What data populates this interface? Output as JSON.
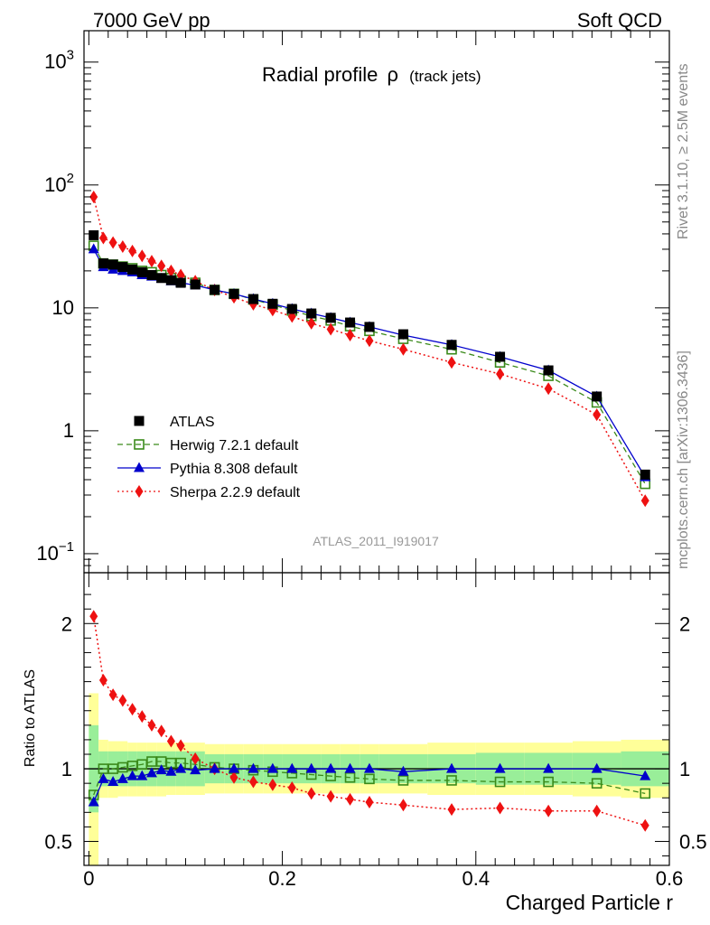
{
  "header": {
    "left": "7000 GeV pp",
    "right": "Soft QCD"
  },
  "side": {
    "top": "Rivet 3.1.10, ≥ 2.5M events",
    "bottom": "mcplots.cern.ch [arXiv:1306.3436]"
  },
  "watermark": "ATLAS_2011_I919017",
  "colors": {
    "atlas": "#000000",
    "herwig": "#3a8a1a",
    "pythia": "#0000cc",
    "sherpa": "#ee1111",
    "band_inner": "#99ee99",
    "band_outer": "#ffff99"
  },
  "chart_data": [
    {
      "type": "line",
      "panel": "main",
      "title": "Radial profile",
      "title_symbol": "ρ",
      "title_suffix": "(track jets)",
      "ylabel": "",
      "yscale": "log",
      "ylim": [
        0.07,
        1800
      ],
      "xlim": [
        -0.005,
        0.6
      ],
      "y_ticks": [
        {
          "value": 0.1,
          "base": "10",
          "exp": "−1"
        },
        {
          "value": 1,
          "base": "1",
          "exp": ""
        },
        {
          "value": 10,
          "base": "10",
          "exp": ""
        },
        {
          "value": 100,
          "base": "10",
          "exp": "2"
        },
        {
          "value": 1000,
          "base": "10",
          "exp": "3"
        }
      ],
      "legend_position": "bottom-left",
      "x": [
        0.005,
        0.015,
        0.025,
        0.035,
        0.045,
        0.055,
        0.065,
        0.075,
        0.085,
        0.095,
        0.11,
        0.13,
        0.15,
        0.17,
        0.19,
        0.21,
        0.23,
        0.25,
        0.27,
        0.29,
        0.325,
        0.375,
        0.425,
        0.475,
        0.525,
        0.575
      ],
      "series": [
        {
          "name": "ATLAS",
          "key": "atlas",
          "marker": "square-filled",
          "line": "none",
          "values": [
            39,
            23,
            22.5,
            21.5,
            20.5,
            19.5,
            18.5,
            17.5,
            16.8,
            16.0,
            15.5,
            14.0,
            13.0,
            11.8,
            10.8,
            9.8,
            9.0,
            8.3,
            7.6,
            7.0,
            6.1,
            5.0,
            4.0,
            3.1,
            1.9,
            0.44
          ]
        },
        {
          "name": "Herwig 7.2.1 default",
          "key": "herwig",
          "marker": "square-open",
          "line": "dashed",
          "values": [
            32,
            23,
            22.5,
            21.7,
            21.0,
            20.0,
            19.5,
            18.5,
            17.5,
            16.6,
            16.0,
            14.0,
            13.0,
            11.7,
            10.6,
            9.5,
            8.6,
            7.9,
            7.1,
            6.5,
            5.6,
            4.6,
            3.6,
            2.8,
            1.7,
            0.37
          ]
        },
        {
          "name": "Pythia 8.308 default",
          "key": "pythia",
          "marker": "triangle-up",
          "line": "solid",
          "values": [
            30,
            21.5,
            20.5,
            20.0,
            19.5,
            18.5,
            18.0,
            17.3,
            16.5,
            16.0,
            15.3,
            14.0,
            13.0,
            11.8,
            10.8,
            9.8,
            9.0,
            8.3,
            7.6,
            7.0,
            6.0,
            5.0,
            4.0,
            3.1,
            1.9,
            0.42
          ]
        },
        {
          "name": "Sherpa 2.2.9 default",
          "key": "sherpa",
          "marker": "diamond",
          "line": "dotted",
          "values": [
            80,
            37,
            34,
            31.5,
            29,
            26.5,
            24,
            22,
            20,
            18.5,
            16.5,
            14.0,
            12.2,
            10.7,
            9.6,
            8.5,
            7.5,
            6.7,
            6.0,
            5.4,
            4.6,
            3.6,
            2.9,
            2.2,
            1.35,
            0.27
          ]
        }
      ]
    },
    {
      "type": "line",
      "panel": "ratio",
      "xlabel": "Charged Particle r",
      "ylabel": "Ratio to ATLAS",
      "ylim": [
        0.335,
        2.35
      ],
      "xlim": [
        -0.005,
        0.6
      ],
      "x_ticks": [
        0,
        0.2,
        0.4,
        0.6
      ],
      "x_tick_labels": [
        "0",
        "0.2",
        "0.4",
        "0.6"
      ],
      "y_ticks": [
        0.5,
        1,
        2
      ],
      "y_tick_labels": [
        "0.5",
        "1",
        "2"
      ],
      "reference": 1,
      "x": [
        0.005,
        0.015,
        0.025,
        0.035,
        0.045,
        0.055,
        0.065,
        0.075,
        0.085,
        0.095,
        0.11,
        0.13,
        0.15,
        0.17,
        0.19,
        0.21,
        0.23,
        0.25,
        0.27,
        0.29,
        0.325,
        0.375,
        0.425,
        0.475,
        0.525,
        0.575
      ],
      "bands": {
        "edges": [
          0,
          0.01,
          0.02,
          0.03,
          0.04,
          0.05,
          0.06,
          0.07,
          0.08,
          0.09,
          0.1,
          0.12,
          0.14,
          0.16,
          0.18,
          0.2,
          0.22,
          0.24,
          0.26,
          0.28,
          0.3,
          0.35,
          0.4,
          0.45,
          0.5,
          0.55,
          0.6
        ],
        "inner_lo": [
          0.7,
          0.88,
          0.88,
          0.88,
          0.88,
          0.88,
          0.88,
          0.88,
          0.88,
          0.88,
          0.88,
          0.9,
          0.9,
          0.9,
          0.9,
          0.9,
          0.9,
          0.9,
          0.9,
          0.9,
          0.9,
          0.9,
          0.89,
          0.89,
          0.89,
          0.88
        ],
        "inner_hi": [
          1.3,
          1.12,
          1.12,
          1.12,
          1.12,
          1.12,
          1.12,
          1.12,
          1.12,
          1.12,
          1.12,
          1.1,
          1.1,
          1.1,
          1.1,
          1.1,
          1.1,
          1.1,
          1.1,
          1.1,
          1.1,
          1.1,
          1.11,
          1.11,
          1.11,
          1.12
        ],
        "outer_lo": [
          0.32,
          0.8,
          0.8,
          0.81,
          0.81,
          0.81,
          0.81,
          0.81,
          0.82,
          0.82,
          0.82,
          0.83,
          0.83,
          0.83,
          0.83,
          0.83,
          0.83,
          0.83,
          0.83,
          0.83,
          0.83,
          0.82,
          0.82,
          0.82,
          0.81,
          0.8
        ],
        "outer_hi": [
          1.52,
          1.2,
          1.19,
          1.19,
          1.18,
          1.18,
          1.18,
          1.18,
          1.18,
          1.18,
          1.18,
          1.17,
          1.17,
          1.17,
          1.17,
          1.17,
          1.17,
          1.17,
          1.17,
          1.17,
          1.17,
          1.18,
          1.18,
          1.18,
          1.19,
          1.2
        ]
      },
      "series": [
        {
          "name": "Herwig 7.2.1 default",
          "key": "herwig",
          "marker": "square-open",
          "line": "dashed",
          "values": [
            0.82,
            1.0,
            1.0,
            1.01,
            1.02,
            1.03,
            1.05,
            1.05,
            1.04,
            1.04,
            1.03,
            1.01,
            1.0,
            0.99,
            0.98,
            0.97,
            0.96,
            0.95,
            0.94,
            0.93,
            0.92,
            0.92,
            0.91,
            0.91,
            0.9,
            0.83
          ]
        },
        {
          "name": "Pythia 8.308 default",
          "key": "pythia",
          "marker": "triangle-up",
          "line": "solid",
          "values": [
            0.77,
            0.93,
            0.91,
            0.93,
            0.95,
            0.95,
            0.97,
            0.99,
            0.98,
            1.0,
            0.99,
            1.0,
            1.0,
            1.0,
            1.0,
            1.0,
            1.0,
            1.0,
            1.0,
            1.0,
            0.98,
            1.0,
            1.0,
            1.0,
            1.0,
            0.95
          ]
        },
        {
          "name": "Sherpa 2.2.9 default",
          "key": "sherpa",
          "marker": "diamond",
          "line": "dotted",
          "values": [
            2.05,
            1.61,
            1.51,
            1.47,
            1.41,
            1.36,
            1.3,
            1.26,
            1.19,
            1.16,
            1.07,
            1.0,
            0.94,
            0.91,
            0.89,
            0.87,
            0.83,
            0.81,
            0.79,
            0.77,
            0.75,
            0.72,
            0.73,
            0.71,
            0.71,
            0.61
          ]
        }
      ]
    }
  ]
}
